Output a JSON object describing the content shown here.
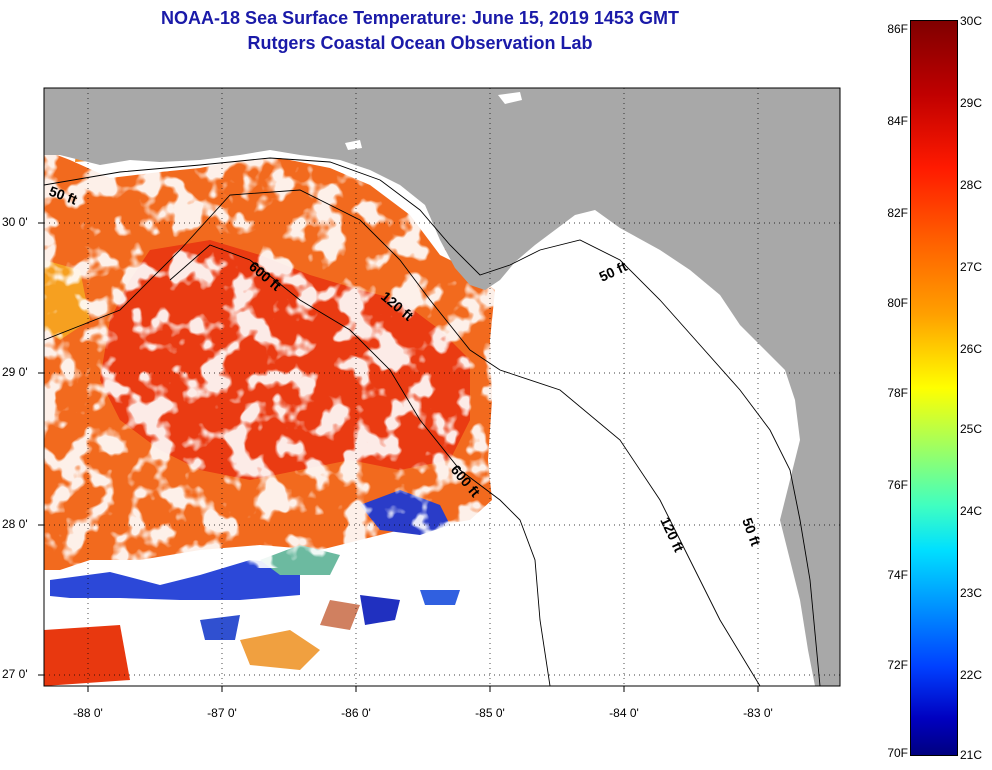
{
  "title": {
    "line1": "NOAA-18 Sea Surface Temperature:  June 15, 2019 1453 GMT",
    "line2": "Rutgers Coastal Ocean Observation Lab"
  },
  "latitude_labels": [
    "30 0'",
    "29 0'",
    "28 0'",
    "27 0'"
  ],
  "longitude_labels": [
    "-88 0'",
    "-87 0'",
    "-86 0'",
    "-85 0'",
    "-84 0'",
    "-83 0'"
  ],
  "contour_labels": {
    "c50_west": "50 ft",
    "c600_north": "600 ft",
    "c120_north": "120 ft",
    "c50_east": "50 ft",
    "c600_south": "600 ft",
    "c120_south": "120 ft",
    "c50_south": "50 ft"
  },
  "colorbar": {
    "fahrenheit": [
      "86F",
      "84F",
      "82F",
      "80F",
      "78F",
      "76F",
      "74F",
      "72F",
      "70F"
    ],
    "celsius": [
      "30C",
      "29C",
      "28C",
      "27C",
      "26C",
      "25C",
      "24C",
      "23C",
      "22C",
      "21C"
    ]
  },
  "colors": {
    "land": "#a8a8a8",
    "title": "#1a1aa8",
    "water_warm": "#f06020",
    "water_hot": "#e83010",
    "cloud": "#ffffff",
    "cool_patch": "#2040d0"
  }
}
